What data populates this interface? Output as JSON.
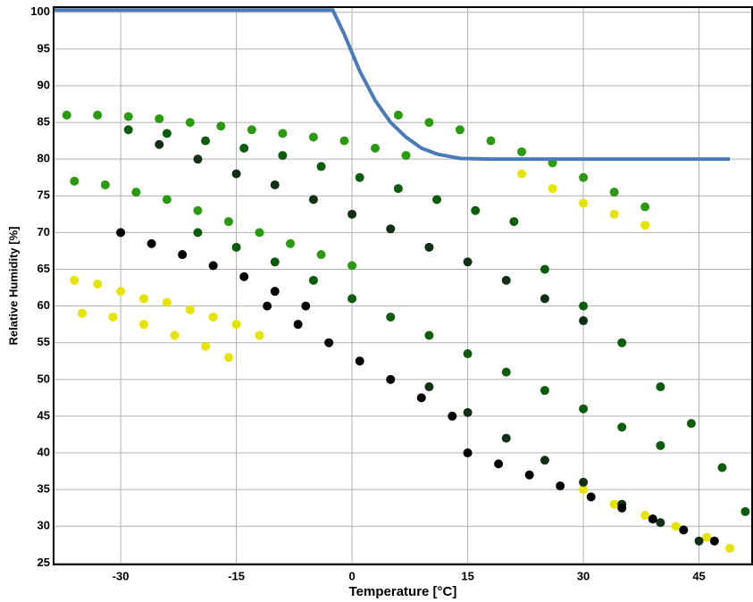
{
  "chart_data": {
    "type": "scatter",
    "xlabel": "Temperature [°C]",
    "ylabel": "Relative Humidity [%]",
    "xlim": [
      -38.7,
      52
    ],
    "ylim": [
      24.8,
      100.7
    ],
    "xticks": [
      -30,
      -15,
      0,
      15,
      30,
      45
    ],
    "yticks": [
      25,
      30,
      35,
      40,
      45,
      50,
      55,
      60,
      65,
      70,
      75,
      80,
      85,
      90,
      95,
      100
    ],
    "grid": true,
    "series": [
      {
        "color": "#e4e400",
        "x": [
          -36,
          -33,
          -30,
          -27,
          -24,
          -21,
          -18,
          -15,
          -12,
          -35,
          -31,
          -27,
          -23,
          -19,
          -16,
          22,
          26,
          30,
          34,
          38,
          30,
          34,
          38,
          42,
          46,
          49
        ],
        "values": [
          63.5,
          63,
          62,
          61,
          60.5,
          59.5,
          58.5,
          57.5,
          56,
          59,
          58.5,
          57.5,
          56,
          54.5,
          53,
          78,
          76,
          74,
          72.5,
          71,
          35,
          33,
          31.5,
          30,
          28.5,
          27
        ]
      },
      {
        "color": "#2a9a10",
        "x": [
          -37,
          -33,
          -29,
          -25,
          -21,
          -17,
          -13,
          -9,
          -5,
          -1,
          3,
          7,
          -36,
          -32,
          -28,
          -24,
          -20,
          -16,
          -12,
          -8,
          -4,
          0,
          6,
          10,
          14,
          18,
          22,
          26,
          30,
          34,
          38
        ],
        "values": [
          86,
          86,
          85.8,
          85.5,
          85,
          84.5,
          84,
          83.5,
          83,
          82.5,
          81.5,
          80.5,
          77,
          76.5,
          75.5,
          74.5,
          73,
          71.5,
          70,
          68.5,
          67,
          65.5,
          86,
          85,
          84,
          82.5,
          81,
          79.5,
          77.5,
          75.5,
          73.5
        ]
      },
      {
        "color": "#0b5d0b",
        "x": [
          -29,
          -24,
          -19,
          -14,
          -9,
          -4,
          1,
          6,
          11,
          16,
          21,
          -20,
          -15,
          -10,
          -5,
          0,
          5,
          10,
          15,
          20,
          25,
          30,
          35,
          40,
          25,
          30,
          35,
          40,
          44,
          48,
          51
        ],
        "values": [
          84,
          83.5,
          82.5,
          81.5,
          80.5,
          79,
          77.5,
          76,
          74.5,
          73,
          71.5,
          70,
          68,
          66,
          63.5,
          61,
          58.5,
          56,
          53.5,
          51,
          48.5,
          46,
          43.5,
          41,
          65,
          60,
          55,
          49,
          44,
          38,
          32
        ]
      },
      {
        "color": "#143014",
        "x": [
          -25,
          -20,
          -15,
          -10,
          -5,
          0,
          5,
          10,
          15,
          20,
          25,
          30,
          10,
          15,
          20,
          25,
          30,
          35,
          40,
          45
        ],
        "values": [
          82,
          80,
          78,
          76.5,
          74.5,
          72.5,
          70.5,
          68,
          66,
          63.5,
          61,
          58,
          49,
          45.5,
          42,
          39,
          36,
          33,
          30.5,
          28
        ]
      },
      {
        "color": "#000000",
        "x": [
          -30,
          -26,
          -22,
          -18,
          -14,
          -10,
          -6,
          -11,
          -7,
          -3,
          1,
          5,
          9,
          13,
          15,
          19,
          23,
          27,
          31,
          35,
          39,
          43,
          47
        ],
        "values": [
          70,
          68.5,
          67,
          65.5,
          64,
          62,
          60,
          60,
          57.5,
          55,
          52.5,
          50,
          47.5,
          45,
          40,
          38.5,
          37,
          35.5,
          34,
          32.5,
          31,
          29.5,
          28
        ]
      },
      {
        "type": "line",
        "color": "#4a7ab8",
        "x": [
          -38.7,
          -2.5,
          -1,
          1,
          3,
          5,
          7,
          9,
          11,
          14,
          18,
          49
        ],
        "values": [
          100.3,
          100.3,
          97,
          92,
          88,
          85,
          83,
          81.5,
          80.7,
          80.1,
          80,
          80
        ]
      }
    ]
  }
}
